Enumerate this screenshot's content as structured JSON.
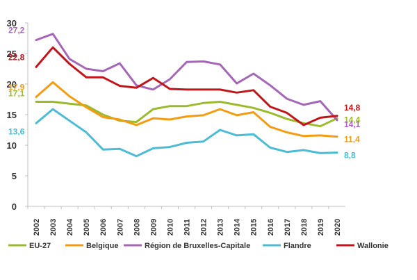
{
  "chart_data": {
    "type": "line",
    "x": [
      "2002",
      "2003",
      "2004",
      "2005",
      "2006",
      "2007",
      "2008",
      "2009",
      "2010",
      "2011",
      "2012",
      "2013",
      "2014",
      "2015",
      "2016",
      "2017",
      "2018",
      "2019",
      "2020"
    ],
    "ylim": [
      0,
      30
    ],
    "yticks": [
      0,
      5,
      10,
      15,
      20,
      25,
      30
    ],
    "grid": false,
    "legend": "bottom",
    "series": [
      {
        "name": "EU-27",
        "color": "#9BBB2D",
        "values": [
          17.1,
          17.1,
          16.8,
          16.5,
          15.0,
          14.0,
          13.8,
          15.9,
          16.4,
          16.4,
          16.9,
          17.1,
          16.6,
          16.1,
          15.3,
          14.3,
          13.6,
          13.1,
          14.4
        ]
      },
      {
        "name": "Belgique",
        "color": "#F39C12",
        "values": [
          17.9,
          20.3,
          18.0,
          16.2,
          14.6,
          14.2,
          13.3,
          14.4,
          14.2,
          14.7,
          14.9,
          15.9,
          14.9,
          15.4,
          13.0,
          12.1,
          11.5,
          11.6,
          11.4
        ]
      },
      {
        "name": "Région de Bruxelles-Capitale",
        "color": "#A566B8",
        "values": [
          27.2,
          28.2,
          24.1,
          22.5,
          22.1,
          23.4,
          19.8,
          19.1,
          20.8,
          23.6,
          23.7,
          23.2,
          20.1,
          21.7,
          19.8,
          17.6,
          16.6,
          17.2,
          14.1
        ]
      },
      {
        "name": "Flandre",
        "color": "#4BBCD4",
        "values": [
          13.6,
          15.9,
          14.0,
          12.1,
          9.3,
          9.4,
          8.2,
          9.5,
          9.7,
          10.4,
          10.6,
          12.5,
          11.6,
          11.8,
          9.6,
          8.9,
          9.2,
          8.7,
          8.8
        ]
      },
      {
        "name": "Wallonie",
        "color": "#C0161B",
        "values": [
          22.8,
          26.0,
          23.3,
          21.1,
          21.1,
          19.7,
          19.4,
          21.0,
          19.2,
          19.1,
          19.1,
          19.1,
          18.6,
          19.0,
          16.3,
          15.3,
          13.3,
          14.5,
          14.8
        ]
      }
    ],
    "annotations": {
      "start": [
        {
          "series": "Région de Bruxelles-Capitale",
          "text": "27,2"
        },
        {
          "series": "Wallonie",
          "text": "22,8"
        },
        {
          "series": "Belgique",
          "text": "17,9"
        },
        {
          "series": "EU-27",
          "text": "17,1"
        },
        {
          "series": "Flandre",
          "text": "13,6"
        }
      ],
      "end": [
        {
          "series": "Wallonie",
          "text": "14,8"
        },
        {
          "series": "EU-27",
          "text": "14,4"
        },
        {
          "series": "Région de Bruxelles-Capitale",
          "text": "14,1"
        },
        {
          "series": "Belgique",
          "text": "11,4"
        },
        {
          "series": "Flandre",
          "text": "8,8"
        }
      ]
    }
  }
}
